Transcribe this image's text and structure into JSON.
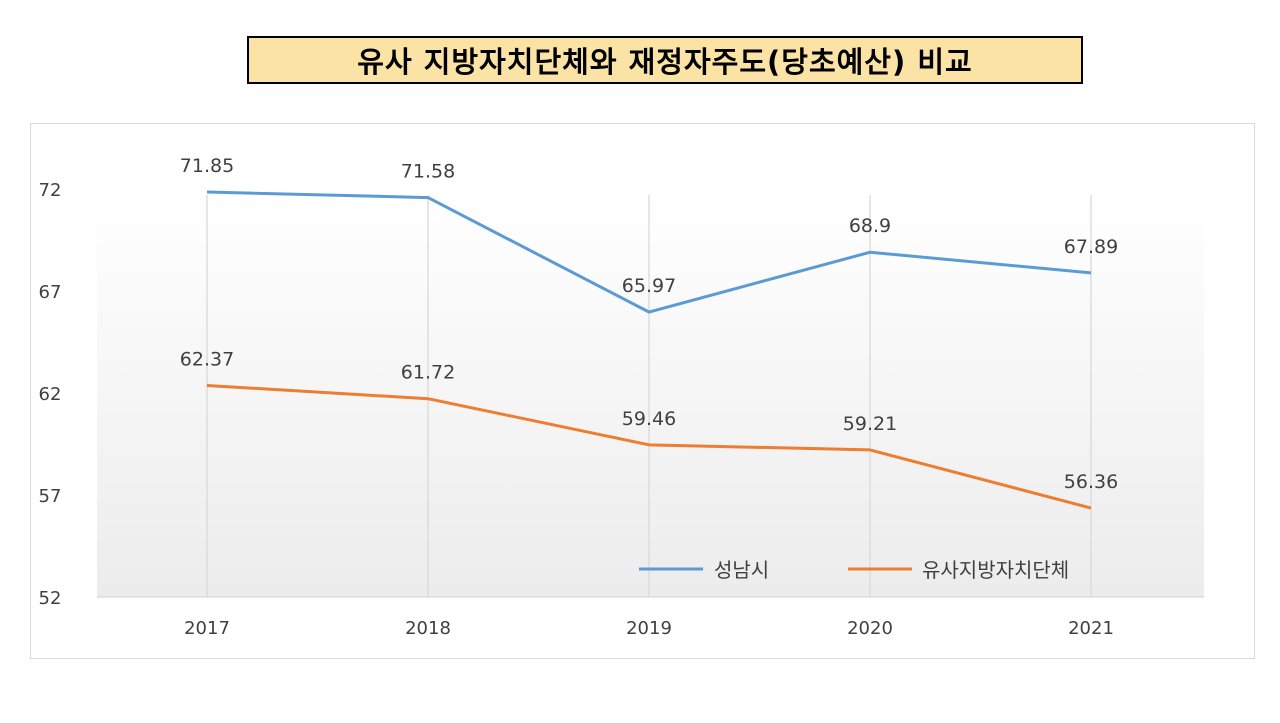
{
  "chart_data": {
    "type": "line",
    "title": "유사 지방자치단체와 재정자주도(당초예산) 비교",
    "categories": [
      "2017",
      "2018",
      "2019",
      "2020",
      "2021"
    ],
    "series": [
      {
        "name": "성남시",
        "color": "#5b9bd5",
        "values": [
          71.85,
          71.58,
          65.97,
          68.9,
          67.89
        ]
      },
      {
        "name": "유사지방자치단체",
        "color": "#ed7d31",
        "values": [
          62.37,
          61.72,
          59.46,
          59.21,
          56.36
        ]
      }
    ],
    "y_ticks": [
      "52",
      "57",
      "62",
      "67",
      "72"
    ],
    "ylim": [
      52,
      73
    ],
    "data_labels": {
      "성남시": [
        "71.85",
        "71.58",
        "65.97",
        "68.9",
        "67.89"
      ],
      "유사지방자치단체": [
        "62.37",
        "61.72",
        "59.46",
        "59.21",
        "56.36"
      ]
    },
    "grid": "vertical",
    "legend_position": "bottom-right",
    "xlabel": "",
    "ylabel": ""
  }
}
